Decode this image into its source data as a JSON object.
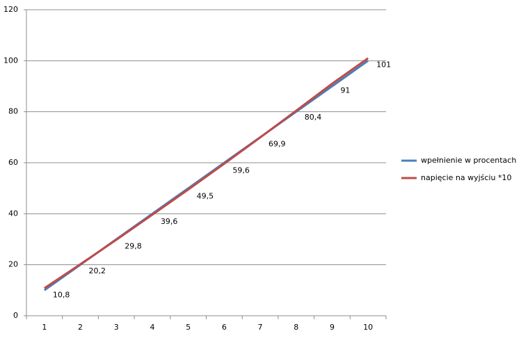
{
  "chart_data": {
    "type": "line",
    "categories": [
      "1",
      "2",
      "3",
      "4",
      "5",
      "6",
      "7",
      "8",
      "9",
      "10"
    ],
    "series": [
      {
        "name": "wpełnienie w procentach",
        "color": "#4a7ebb",
        "values": [
          10,
          20,
          30,
          40,
          50,
          60,
          70,
          80,
          90,
          100
        ]
      },
      {
        "name": "napięcie na wyjściu *10",
        "color": "#be4b48",
        "values": [
          10.8,
          20.2,
          29.8,
          39.6,
          49.5,
          59.6,
          69.9,
          80.4,
          91,
          101
        ],
        "value_labels": [
          "10,8",
          "20,2",
          "29,8",
          "39,6",
          "49,5",
          "59,6",
          "69,9",
          "80,4",
          "91",
          "101"
        ]
      }
    ],
    "ylim": [
      0,
      120
    ],
    "yticks": [
      0,
      20,
      40,
      60,
      80,
      100,
      120
    ],
    "grid": true,
    "legend": "right"
  }
}
